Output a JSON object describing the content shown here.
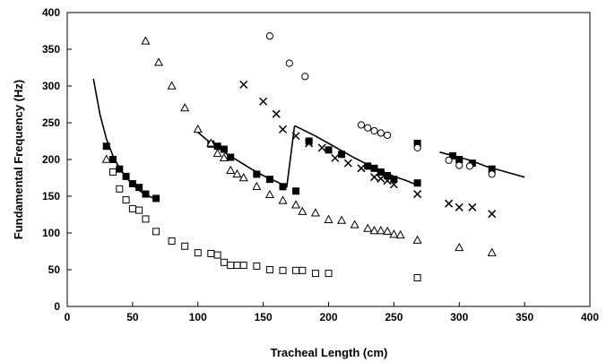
{
  "chart_data": {
    "type": "scatter",
    "title": "",
    "xlabel": "Tracheal Length (cm)",
    "ylabel": "Fundamental Frequency (Hz)",
    "xlim": [
      0,
      400
    ],
    "ylim": [
      0,
      400
    ],
    "x_ticks": [
      "0",
      "50",
      "100",
      "150",
      "200",
      "250",
      "300",
      "350",
      "400"
    ],
    "y_ticks": [
      "0",
      "50",
      "100",
      "150",
      "200",
      "250",
      "300",
      "350",
      "400"
    ],
    "grid": false,
    "legend": "none",
    "series": [
      {
        "marker": "filled-square",
        "points": [
          [
            30,
            218
          ],
          [
            35,
            200
          ],
          [
            40,
            187
          ],
          [
            45,
            177
          ],
          [
            50,
            167
          ],
          [
            55,
            162
          ],
          [
            60,
            153
          ],
          [
            68,
            147
          ],
          [
            110,
            221
          ],
          [
            115,
            218
          ],
          [
            120,
            214
          ],
          [
            125,
            203
          ],
          [
            145,
            180
          ],
          [
            155,
            173
          ],
          [
            165,
            163
          ],
          [
            175,
            157
          ],
          [
            185,
            225
          ],
          [
            200,
            213
          ],
          [
            210,
            207
          ],
          [
            230,
            191
          ],
          [
            235,
            188
          ],
          [
            240,
            183
          ],
          [
            245,
            178
          ],
          [
            250,
            173
          ],
          [
            268,
            222
          ],
          [
            268,
            168
          ],
          [
            295,
            205
          ],
          [
            300,
            200
          ],
          [
            310,
            195
          ],
          [
            325,
            187
          ]
        ]
      },
      {
        "marker": "open-square",
        "points": [
          [
            35,
            183
          ],
          [
            40,
            160
          ],
          [
            45,
            145
          ],
          [
            50,
            133
          ],
          [
            55,
            131
          ],
          [
            60,
            119
          ],
          [
            68,
            102
          ],
          [
            80,
            89
          ],
          [
            90,
            82
          ],
          [
            100,
            73
          ],
          [
            110,
            72
          ],
          [
            115,
            70
          ],
          [
            120,
            60
          ],
          [
            125,
            56
          ],
          [
            130,
            56
          ],
          [
            135,
            56
          ],
          [
            145,
            55
          ],
          [
            155,
            50
          ],
          [
            165,
            49
          ],
          [
            175,
            49
          ],
          [
            180,
            49
          ],
          [
            190,
            45
          ],
          [
            200,
            45
          ],
          [
            268,
            39
          ]
        ]
      },
      {
        "marker": "open-triangle",
        "points": [
          [
            30,
            200
          ],
          [
            60,
            361
          ],
          [
            70,
            332
          ],
          [
            80,
            300
          ],
          [
            90,
            270
          ],
          [
            100,
            241
          ],
          [
            110,
            222
          ],
          [
            115,
            208
          ],
          [
            120,
            202
          ],
          [
            125,
            185
          ],
          [
            130,
            180
          ],
          [
            135,
            175
          ],
          [
            145,
            163
          ],
          [
            155,
            152
          ],
          [
            165,
            144
          ],
          [
            175,
            138
          ],
          [
            180,
            129
          ],
          [
            190,
            127
          ],
          [
            200,
            118
          ],
          [
            210,
            117
          ],
          [
            220,
            111
          ],
          [
            230,
            106
          ],
          [
            235,
            103
          ],
          [
            240,
            103
          ],
          [
            245,
            102
          ],
          [
            250,
            98
          ],
          [
            255,
            97
          ],
          [
            268,
            90
          ],
          [
            300,
            80
          ],
          [
            325,
            73
          ]
        ]
      },
      {
        "marker": "x",
        "points": [
          [
            135,
            302
          ],
          [
            150,
            279
          ],
          [
            160,
            262
          ],
          [
            165,
            241
          ],
          [
            175,
            232
          ],
          [
            185,
            222
          ],
          [
            195,
            216
          ],
          [
            205,
            202
          ],
          [
            215,
            195
          ],
          [
            225,
            188
          ],
          [
            235,
            176
          ],
          [
            240,
            174
          ],
          [
            245,
            171
          ],
          [
            250,
            166
          ],
          [
            268,
            153
          ],
          [
            292,
            140
          ],
          [
            300,
            135
          ],
          [
            310,
            135
          ],
          [
            325,
            126
          ]
        ]
      },
      {
        "marker": "open-circle",
        "points": [
          [
            155,
            368
          ],
          [
            170,
            331
          ],
          [
            182,
            313
          ],
          [
            225,
            247
          ],
          [
            230,
            243
          ],
          [
            235,
            239
          ],
          [
            240,
            236
          ],
          [
            245,
            233
          ],
          [
            268,
            216
          ],
          [
            292,
            199
          ],
          [
            300,
            192
          ],
          [
            308,
            191
          ],
          [
            325,
            180
          ]
        ]
      }
    ],
    "fit_lines": [
      {
        "points": [
          [
            20,
            310
          ],
          [
            25,
            262
          ],
          [
            30,
            228
          ],
          [
            35,
            205
          ],
          [
            40,
            188
          ],
          [
            45,
            176
          ],
          [
            50,
            166
          ],
          [
            55,
            158
          ],
          [
            60,
            152
          ],
          [
            68,
            146
          ]
        ]
      },
      {
        "points": [
          [
            98,
            240
          ],
          [
            110,
            222
          ],
          [
            120,
            210
          ],
          [
            130,
            199
          ],
          [
            140,
            188
          ],
          [
            150,
            178
          ],
          [
            160,
            170
          ],
          [
            168,
            163
          ],
          [
            174,
            246
          ]
        ]
      },
      {
        "points": [
          [
            174,
            246
          ],
          [
            190,
            232
          ],
          [
            200,
            222
          ],
          [
            210,
            212
          ],
          [
            220,
            202
          ],
          [
            230,
            193
          ],
          [
            240,
            185
          ],
          [
            250,
            177
          ],
          [
            260,
            171
          ],
          [
            268,
            165
          ]
        ]
      },
      {
        "points": [
          [
            285,
            210
          ],
          [
            300,
            203
          ],
          [
            310,
            198
          ],
          [
            320,
            191
          ],
          [
            330,
            186
          ],
          [
            340,
            181
          ],
          [
            350,
            176
          ]
        ]
      }
    ]
  }
}
